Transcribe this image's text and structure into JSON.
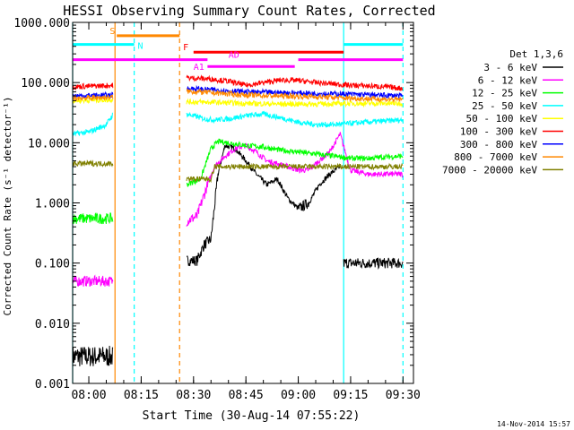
{
  "chart_data": {
    "type": "line",
    "title": "HESSI Observing Summary Count Rates, Corrected",
    "xlabel": "Start Time (30-Aug-14 07:55:22)",
    "ylabel": "Corrected Count Rate (s⁻¹ detector⁻¹)",
    "yscale": "log",
    "ylim": [
      0.001,
      1000
    ],
    "xlim": [
      "07:55:22",
      "09:33:00"
    ],
    "y_ticks": [
      "1000.000",
      "100.000",
      "10.000",
      "1.000",
      "0.100",
      "0.010",
      "0.001"
    ],
    "x_ticks": [
      "08:00",
      "08:15",
      "08:30",
      "08:45",
      "09:00",
      "09:15",
      "09:30"
    ],
    "grid": false,
    "legend_position": "right",
    "legend_title": "Det 1,3,6",
    "footer_date": "14-Nov-2014 15:57",
    "series": [
      {
        "name": "3 - 6 keV",
        "color": "#000000",
        "segments": [
          {
            "x": [
              "07:55:22",
              "08:07:00"
            ],
            "y": [
              0.0028,
              0.0028
            ]
          },
          {
            "x": [
              "08:28",
              "08:31",
              "08:33",
              "08:35",
              "08:37",
              "08:39",
              "08:42",
              "08:45",
              "08:48",
              "08:51",
              "08:54",
              "08:57",
              "09:00",
              "09:03",
              "09:06",
              "09:09",
              "09:12"
            ],
            "y": [
              0.11,
              0.11,
              0.2,
              0.25,
              3,
              9,
              8,
              5,
              3,
              2,
              2.5,
              1.2,
              0.8,
              1.0,
              2.0,
              3.0,
              4.0
            ]
          },
          {
            "x": [
              "09:13",
              "09:30"
            ],
            "y": [
              0.1,
              0.1
            ]
          }
        ]
      },
      {
        "name": "6 - 12 keV",
        "color": "#ff00ff",
        "segments": [
          {
            "x": [
              "07:55:22",
              "08:07:00"
            ],
            "y": [
              0.05,
              0.05
            ]
          },
          {
            "x": [
              "08:28",
              "08:31",
              "08:34",
              "08:36",
              "08:39",
              "08:42",
              "08:45",
              "08:48",
              "08:51",
              "08:54",
              "08:57",
              "09:00",
              "09:03",
              "09:06",
              "09:09",
              "09:12",
              "09:15",
              "09:20",
              "09:25",
              "09:30"
            ],
            "y": [
              0.5,
              0.6,
              2.0,
              4.0,
              6.0,
              8.0,
              9.0,
              7.0,
              5.0,
              4.5,
              4.0,
              3.5,
              3.5,
              5.0,
              7.0,
              14.0,
              3.5,
              3.0,
              3.0,
              3.0
            ]
          }
        ]
      },
      {
        "name": "12 - 25 keV",
        "color": "#00ff00",
        "segments": [
          {
            "x": [
              "07:55:22",
              "08:07:00"
            ],
            "y": [
              0.55,
              0.55
            ]
          },
          {
            "x": [
              "08:28",
              "08:32",
              "08:35",
              "08:37",
              "08:40",
              "08:45",
              "08:50",
              "08:55",
              "09:00",
              "09:05",
              "09:10",
              "09:15",
              "09:20",
              "09:25",
              "09:30"
            ],
            "y": [
              2.0,
              2.5,
              8.0,
              10.5,
              10.0,
              9.0,
              8.5,
              7.5,
              7.0,
              6.5,
              6.0,
              5.5,
              5.5,
              5.8,
              6.0
            ]
          }
        ]
      },
      {
        "name": "25 - 50 keV",
        "color": "#00ffff",
        "segments": [
          {
            "x": [
              "07:55:22",
              "08:00",
              "08:05",
              "08:07:00"
            ],
            "y": [
              14,
              15,
              20,
              30
            ]
          },
          {
            "x": [
              "08:28",
              "08:30",
              "08:33",
              "08:36",
              "08:40",
              "08:45",
              "08:50",
              "08:55",
              "09:00",
              "09:05",
              "09:10",
              "09:15",
              "09:20",
              "09:25",
              "09:30"
            ],
            "y": [
              30,
              28,
              25,
              24,
              25,
              28,
              30,
              26,
              22,
              20,
              20,
              21,
              22,
              23,
              24
            ]
          }
        ]
      },
      {
        "name": "50 - 100 keV",
        "color": "#ffff00",
        "segments": [
          {
            "x": [
              "07:55:22",
              "08:07:00"
            ],
            "y": [
              50,
              52
            ]
          },
          {
            "x": [
              "08:28",
              "08:35",
              "08:45",
              "08:55",
              "09:05",
              "09:15",
              "09:30"
            ],
            "y": [
              48,
              47,
              45,
              44,
              44,
              45,
              45
            ]
          }
        ]
      },
      {
        "name": "100 - 300 keV",
        "color": "#ff0000",
        "segments": [
          {
            "x": [
              "07:55:22",
              "08:07:00"
            ],
            "y": [
              85,
              90
            ]
          },
          {
            "x": [
              "08:28",
              "08:35",
              "08:40",
              "08:45",
              "08:50",
              "08:55",
              "09:00",
              "09:05",
              "09:10",
              "09:15",
              "09:20",
              "09:25",
              "09:30"
            ],
            "y": [
              120,
              115,
              105,
              90,
              100,
              110,
              108,
              100,
              95,
              90,
              88,
              85,
              80
            ]
          }
        ]
      },
      {
        "name": "300 - 800 keV",
        "color": "#0000ff",
        "segments": [
          {
            "x": [
              "07:55:22",
              "08:07:00"
            ],
            "y": [
              60,
              62
            ]
          },
          {
            "x": [
              "08:28",
              "08:35",
              "08:45",
              "08:55",
              "09:05",
              "09:15",
              "09:30"
            ],
            "y": [
              80,
              76,
              70,
              68,
              66,
              64,
              60
            ]
          }
        ]
      },
      {
        "name": "800 - 7000 keV",
        "color": "#ff8800",
        "segments": [
          {
            "x": [
              "07:55:22",
              "08:07:00"
            ],
            "y": [
              55,
              57
            ]
          },
          {
            "x": [
              "08:28",
              "08:35",
              "08:45",
              "08:55",
              "09:05",
              "09:15",
              "09:30"
            ],
            "y": [
              72,
              68,
              62,
              60,
              58,
              55,
              52
            ]
          }
        ]
      },
      {
        "name": "7000 - 20000 keV",
        "color": "#808000",
        "segments": [
          {
            "x": [
              "07:55:22",
              "08:07:00"
            ],
            "y": [
              4.5,
              4.5
            ]
          },
          {
            "x": [
              "08:28",
              "08:35",
              "08:36",
              "09:30"
            ],
            "y": [
              2.5,
              2.5,
              4.0,
              4.0
            ]
          }
        ]
      }
    ],
    "flag_bars": [
      {
        "label": "S",
        "color": "#ff8800",
        "x": [
          "08:08",
          "08:26"
        ],
        "y": 600,
        "label_x": "08:06"
      },
      {
        "label": "N",
        "color": "#00ffff",
        "x": [
          "07:55:22",
          "08:13"
        ],
        "y": 430,
        "label_x": "08:14"
      },
      {
        "label": "N",
        "color": "#00ffff",
        "x": [
          "09:13",
          "09:30"
        ],
        "y": 430
      },
      {
        "label": "F",
        "color": "#ff0000",
        "x": [
          "08:30",
          "09:13"
        ],
        "y": 320,
        "label_x": "08:27"
      },
      {
        "label": "AD",
        "color": "#ff00ff",
        "x": [
          "07:55:22",
          "08:34"
        ],
        "y": 240,
        "label_x": "08:40"
      },
      {
        "label": "AD",
        "color": "#ff00ff",
        "x": [
          "09:00",
          "09:30"
        ],
        "y": 240
      },
      {
        "label": "A1",
        "color": "#ff00ff",
        "x": [
          "08:34",
          "08:59"
        ],
        "y": 185,
        "label_x": "08:30"
      }
    ],
    "vertical_markers": [
      {
        "x": "07:55:22",
        "color": "#00ffff",
        "style": "solid"
      },
      {
        "x": "08:07:30",
        "color": "#ff8800",
        "style": "solid"
      },
      {
        "x": "08:13:00",
        "color": "#00ffff",
        "style": "dashed"
      },
      {
        "x": "08:26:00",
        "color": "#ff8800",
        "style": "dashed"
      },
      {
        "x": "09:13:00",
        "color": "#00ffff",
        "style": "solid"
      },
      {
        "x": "09:30:00",
        "color": "#00ffff",
        "style": "dashed"
      }
    ]
  }
}
